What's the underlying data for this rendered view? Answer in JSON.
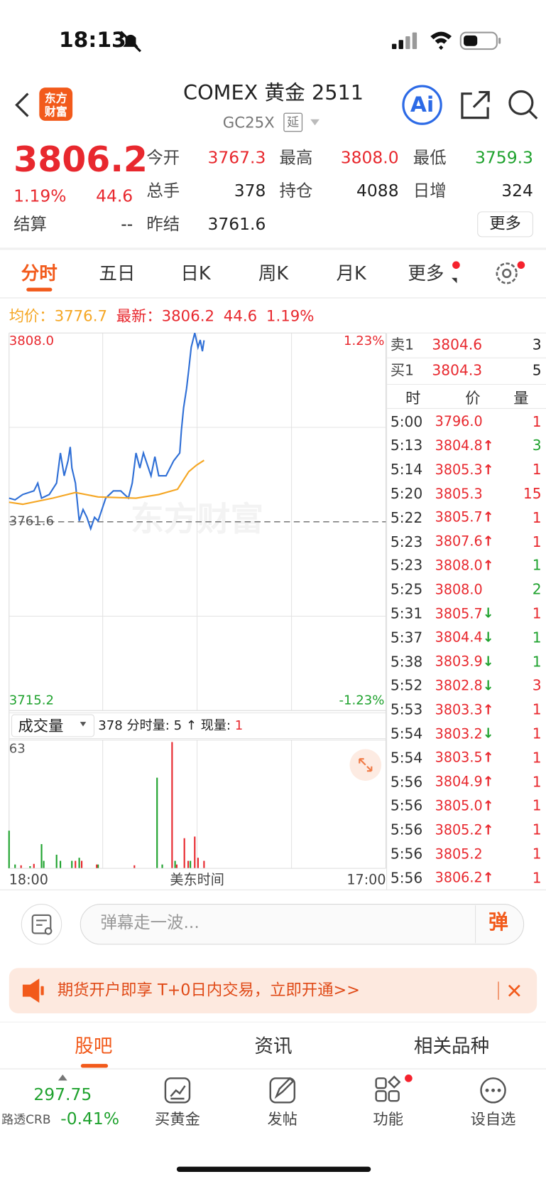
{
  "status": {
    "time": "18:13"
  },
  "header": {
    "logo": [
      "东方",
      "财富"
    ],
    "title": "COMEX 黄金 2511",
    "code": "GC25X",
    "tag": "延",
    "ai": "Ai"
  },
  "quote": {
    "price": "3806.2",
    "percent": "1.19%",
    "change": "44.6",
    "color": "#e8282e",
    "fields": [
      {
        "label": "今开",
        "value": "3767.3",
        "color": "#e8282e"
      },
      {
        "label": "最高",
        "value": "3808.0",
        "color": "#e8282e"
      },
      {
        "label": "最低",
        "value": "3759.3",
        "color": "#1fa22e"
      },
      {
        "label": "总手",
        "value": "378",
        "color": "#222222"
      },
      {
        "label": "持仓",
        "value": "4088",
        "color": "#222222"
      },
      {
        "label": "日增",
        "value": "324",
        "color": "#222222"
      }
    ],
    "settle": {
      "label": "结算",
      "value": "--"
    },
    "prev_settle": {
      "label": "昨结",
      "value": "3761.6"
    },
    "more": "更多"
  },
  "tabs": {
    "items": [
      "分时",
      "五日",
      "日K",
      "周K",
      "月K",
      "更多"
    ],
    "active": 0
  },
  "legend": {
    "avg_label": "均价：",
    "avg": "3776.7",
    "last_label": "最新：",
    "last": "3806.2",
    "change": "44.6",
    "percent": "1.19%"
  },
  "chart_data": [
    {
      "type": "line",
      "watermark": "东方财富",
      "xlabel": "美东时间",
      "xlim": [
        0,
        1380
      ],
      "xticks": [
        {
          "value": 0,
          "label": "18:00"
        },
        {
          "value": 1380,
          "label": "17:00"
        }
      ],
      "ylim": [
        3715.2,
        3808.0
      ],
      "yticks": [
        {
          "value": 3808.0,
          "label": "3808.0"
        },
        {
          "value": 3761.6,
          "label": "3761.6"
        },
        {
          "value": 3715.2,
          "label": "3715.2"
        }
      ],
      "y2lim": [
        -1.23,
        1.23
      ],
      "y2ticks": [
        {
          "value": 1.23,
          "label": "1.23%"
        },
        {
          "value": -1.23,
          "label": "-1.23%"
        }
      ],
      "grid": true,
      "series": [
        {
          "color": "#2f6fd6",
          "x": [
            0,
            22,
            50,
            91,
            105,
            119,
            147,
            174,
            188,
            202,
            216,
            224,
            230,
            243,
            257,
            271,
            285,
            299,
            313,
            326,
            354,
            382,
            409,
            437,
            451,
            465,
            479,
            492,
            520,
            534,
            548,
            575,
            603,
            625,
            631,
            639,
            650,
            658,
            667,
            680,
            692,
            700,
            708,
            714
          ],
          "values": [
            3767.4,
            3767.0,
            3768.3,
            3769.2,
            3771.1,
            3767.4,
            3768.3,
            3771.1,
            3778.5,
            3772.9,
            3776.6,
            3780.0,
            3774.8,
            3771.1,
            3761.8,
            3764.6,
            3762.7,
            3759.9,
            3762.7,
            3761.8,
            3767.4,
            3769.2,
            3769.2,
            3767.4,
            3771.1,
            3778.5,
            3774.8,
            3778.5,
            3772.9,
            3777.6,
            3772.9,
            3772.9,
            3776.6,
            3778.5,
            3784.1,
            3789.6,
            3794.3,
            3798.9,
            3804.5,
            3808.0,
            3804.5,
            3806.3,
            3803.5,
            3806.2
          ]
        },
        {
          "color": "#f5a623",
          "x": [
            0,
            50,
            160,
            243,
            326,
            465,
            548,
            617,
            658,
            686,
            714
          ],
          "values": [
            3766.4,
            3765.9,
            3767.4,
            3768.8,
            3767.7,
            3767.4,
            3768.3,
            3769.6,
            3773.9,
            3775.5,
            3776.7
          ]
        }
      ]
    },
    {
      "type": "bar",
      "xlim": [
        0,
        1380
      ],
      "ylim": [
        0,
        63
      ],
      "yticks": [
        63
      ],
      "series": [
        {
          "color": "#1fa22e",
          "x": [
            0,
            22,
            77,
            119,
            127,
            174,
            188,
            230,
            257,
            326,
            542,
            561,
            608,
            664
          ],
          "values": [
            18.5,
            1.9,
            1.1,
            11.9,
            3.7,
            6.7,
            3.7,
            3.7,
            5.2,
            1.9,
            44.5,
            1.9,
            3.7,
            3.7
          ]
        },
        {
          "color": "#e8282e",
          "x": [
            44,
            91,
            243,
            266,
            321,
            459,
            597,
            614,
            642,
            656,
            680,
            692,
            714
          ],
          "values": [
            1.5,
            2.2,
            3.7,
            3.7,
            1.9,
            1.5,
            62,
            1.9,
            14.8,
            3.7,
            15.6,
            5.2,
            3.7
          ]
        }
      ]
    }
  ],
  "volume": {
    "selector": "成交量",
    "info": "378 分时量: 5 ↑ 现量:",
    "current": "1"
  },
  "orderbook": {
    "ask": {
      "label": "卖1",
      "price": "3804.6",
      "qty": "3"
    },
    "bid": {
      "label": "买1",
      "price": "3804.3",
      "qty": "5"
    },
    "columns": [
      "时",
      "价",
      "量"
    ],
    "trades": [
      {
        "time": "5:00",
        "price": "3796.0",
        "qty": "1",
        "qty_color": "#e8282e"
      },
      {
        "time": "5:13",
        "price": "3804.8",
        "dir": "↑",
        "qty": "3",
        "qty_color": "#1fa22e"
      },
      {
        "time": "5:14",
        "price": "3805.3",
        "dir": "↑",
        "qty": "1",
        "qty_color": "#e8282e"
      },
      {
        "time": "5:20",
        "price": "3805.3",
        "qty": "15",
        "qty_color": "#e8282e"
      },
      {
        "time": "5:22",
        "price": "3805.7",
        "dir": "↑",
        "qty": "1",
        "qty_color": "#e8282e"
      },
      {
        "time": "5:23",
        "price": "3807.6",
        "dir": "↑",
        "qty": "1",
        "qty_color": "#e8282e"
      },
      {
        "time": "5:23",
        "price": "3808.0",
        "dir": "↑",
        "qty": "1",
        "qty_color": "#1fa22e"
      },
      {
        "time": "5:25",
        "price": "3808.0",
        "qty": "2",
        "qty_color": "#1fa22e"
      },
      {
        "time": "5:31",
        "price": "3805.7",
        "dir": "↓",
        "qty": "1",
        "qty_color": "#e8282e"
      },
      {
        "time": "5:37",
        "price": "3804.4",
        "dir": "↓",
        "qty": "1",
        "qty_color": "#1fa22e"
      },
      {
        "time": "5:38",
        "price": "3803.9",
        "dir": "↓",
        "qty": "1",
        "qty_color": "#1fa22e"
      },
      {
        "time": "5:52",
        "price": "3802.8",
        "dir": "↓",
        "qty": "3",
        "qty_color": "#e8282e"
      },
      {
        "time": "5:53",
        "price": "3803.3",
        "dir": "↑",
        "qty": "1",
        "qty_color": "#e8282e"
      },
      {
        "time": "5:54",
        "price": "3803.2",
        "dir": "↓",
        "qty": "1",
        "qty_color": "#e8282e"
      },
      {
        "time": "5:54",
        "price": "3803.5",
        "dir": "↑",
        "qty": "1",
        "qty_color": "#e8282e"
      },
      {
        "time": "5:56",
        "price": "3804.9",
        "dir": "↑",
        "qty": "1",
        "qty_color": "#e8282e"
      },
      {
        "time": "5:56",
        "price": "3805.0",
        "dir": "↑",
        "qty": "1",
        "qty_color": "#e8282e"
      },
      {
        "time": "5:56",
        "price": "3805.2",
        "dir": "↑",
        "qty": "1",
        "qty_color": "#e8282e"
      },
      {
        "time": "5:56",
        "price": "3805.2",
        "qty": "1",
        "qty_color": "#e8282e"
      },
      {
        "time": "5:56",
        "price": "3806.2",
        "dir": "↑",
        "qty": "1",
        "qty_color": "#e8282e"
      }
    ]
  },
  "comment": {
    "placeholder": "弹幕走一波...",
    "button": "弹"
  },
  "banner": {
    "text": "期货开户即享 T+0日内交易，立即开通>>"
  },
  "bottom_tabs": {
    "items": [
      "股吧",
      "资讯",
      "相关品种"
    ],
    "active": 0
  },
  "nav": {
    "index": {
      "value": "297.75",
      "name": "路透CRB",
      "change": "-0.41%"
    },
    "items": [
      "买黄金",
      "发帖",
      "功能",
      "设自选"
    ]
  }
}
